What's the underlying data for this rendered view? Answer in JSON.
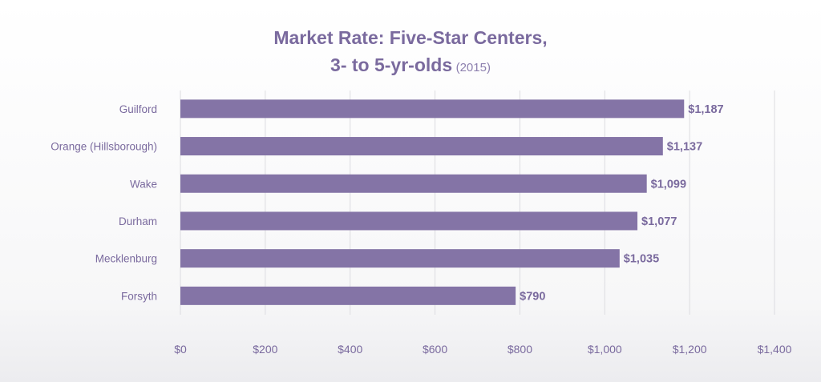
{
  "chart_data": {
    "type": "bar",
    "orientation": "horizontal",
    "title_line1": "Market Rate: Five-Star Centers,",
    "title_line2": "3- to 5-yr-olds",
    "title_year": "(2015)",
    "categories": [
      "Guilford",
      "Orange (Hillsborough)",
      "Wake",
      "Durham",
      "Mecklenburg",
      "Forsyth"
    ],
    "values": [
      1187,
      1137,
      1099,
      1077,
      1035,
      790
    ],
    "value_labels": [
      "$1,187",
      "$1,137",
      "$1,099",
      "$1,077",
      "$1,035",
      "$790"
    ],
    "xticks": [
      0,
      200,
      400,
      600,
      800,
      1000,
      1200,
      1400
    ],
    "xtick_labels": [
      "$0",
      "$200",
      "$400",
      "$600",
      "$800",
      "$1,000",
      "$1,200",
      "$1,400"
    ],
    "xlim": [
      0,
      1400
    ],
    "grid": true,
    "bar_color": "#8474a6",
    "text_color": "#7a6a9e"
  }
}
